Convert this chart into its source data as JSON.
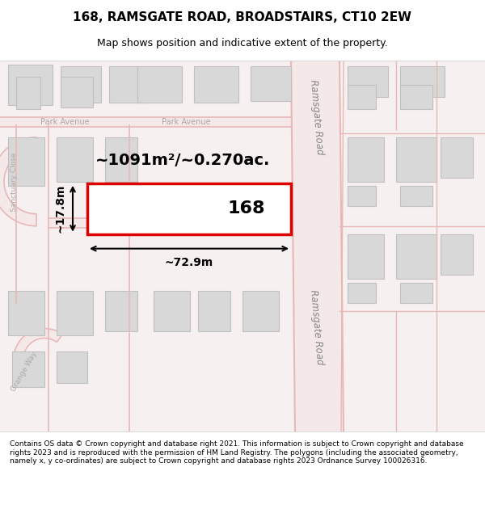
{
  "title_line1": "168, RAMSGATE ROAD, BROADSTAIRS, CT10 2EW",
  "title_line2": "Map shows position and indicative extent of the property.",
  "footer_text": "Contains OS data © Crown copyright and database right 2021. This information is subject to Crown copyright and database rights 2023 and is reproduced with the permission of HM Land Registry. The polygons (including the associated geometry, namely x, y co-ordinates) are subject to Crown copyright and database rights 2023 Ordnance Survey 100026316.",
  "map_bg": "#f5f0f0",
  "road_color_major": "#e8b8b8",
  "road_color_minor": "#f0c8c8",
  "building_fill": "#d8d8d8",
  "building_edge": "#c0c0c0",
  "highlight_fill": "#ffffff",
  "highlight_edge": "#dd0000",
  "area_text": "~1091m²/~0.270ac.",
  "dim_width": "~72.9m",
  "dim_height": "~17.8m",
  "label_168": "168",
  "road_label_top": "Ramsgate Road",
  "road_label_bottom": "Ramsgate Road",
  "street_label_park_ave_left": "Park Avenue",
  "street_label_park_ave_right": "Park Avenue",
  "street_label_sanctuary": "Sanctuary Close",
  "street_label_grange": "Grange Way"
}
